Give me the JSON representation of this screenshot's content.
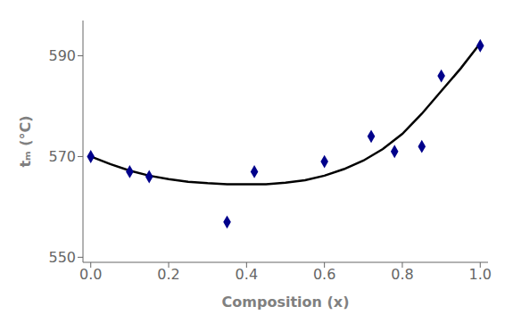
{
  "chart_data": {
    "type": "line",
    "xlabel": "Composition (x)",
    "ylabel": "tₘ (°C)",
    "xlim": [
      -0.02,
      1.02
    ],
    "ylim": [
      549,
      597
    ],
    "xticks": [
      {
        "value": 0,
        "label": "0.0"
      },
      0.2,
      0.4,
      0.6,
      0.8,
      {
        "value": 1.0,
        "label": "1.0"
      }
    ],
    "yticks": [
      550,
      570,
      590
    ],
    "grid": false,
    "series": [
      {
        "type": "line",
        "color": "#000000",
        "line_style": "solid",
        "x": [
          0.0,
          0.05,
          0.1,
          0.15,
          0.2,
          0.25,
          0.3,
          0.35,
          0.4,
          0.45,
          0.5,
          0.55,
          0.6,
          0.65,
          0.7,
          0.75,
          0.8,
          0.85,
          0.9,
          0.95,
          1.0
        ],
        "values": [
          570,
          568.5,
          567.2,
          566.2,
          565.5,
          565.0,
          564.7,
          564.5,
          564.5,
          564.5,
          564.8,
          565.3,
          566.2,
          567.5,
          569.2,
          571.5,
          574.5,
          578.5,
          583.0,
          587.5,
          592.5
        ]
      },
      {
        "type": "scatter",
        "color": "#00008B",
        "marker": "diamond",
        "x": [
          0.0,
          0.1,
          0.15,
          0.35,
          0.42,
          0.6,
          0.72,
          0.78,
          0.85,
          0.9,
          1.0
        ],
        "values": [
          570,
          567,
          566,
          557,
          567,
          569,
          574,
          571,
          572,
          586,
          592
        ]
      }
    ]
  }
}
